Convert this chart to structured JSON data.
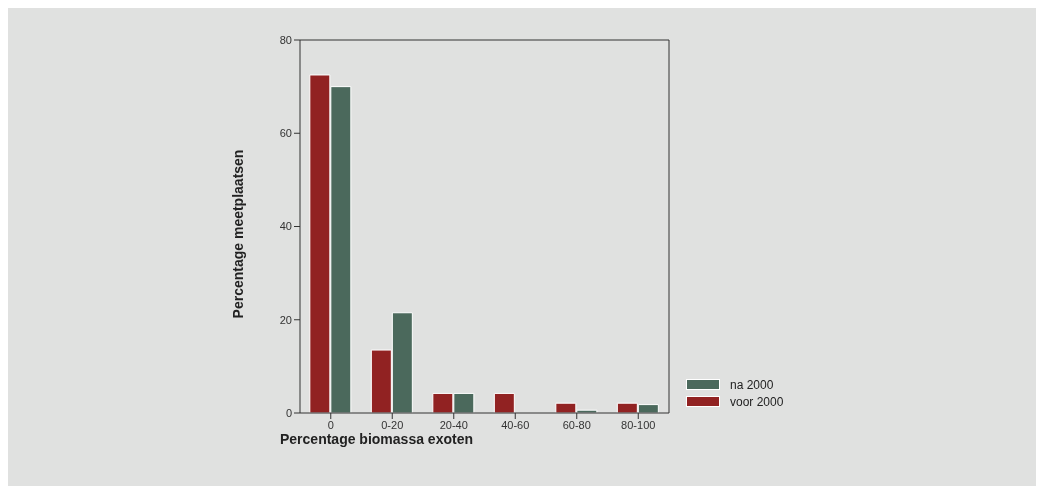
{
  "chart_data": {
    "type": "bar",
    "xlabel": "Percentage biomassa exoten",
    "ylabel": "Percentage meetplaatsen",
    "categories": [
      "0",
      "0-20",
      "20-40",
      "40-60",
      "60-80",
      "80-100"
    ],
    "series": [
      {
        "name": "voor 2000",
        "color": "#912222",
        "values": [
          72.5,
          13.5,
          4.2,
          4.2,
          2.1,
          2.1
        ]
      },
      {
        "name": "na 2000",
        "color": "#4b695c",
        "values": [
          70,
          21.5,
          4.2,
          0,
          0.6,
          1.8
        ]
      }
    ],
    "ylim": [
      0,
      80
    ],
    "yticks": [
      0,
      20,
      40,
      60,
      80
    ],
    "grid": false,
    "legend": "right"
  }
}
